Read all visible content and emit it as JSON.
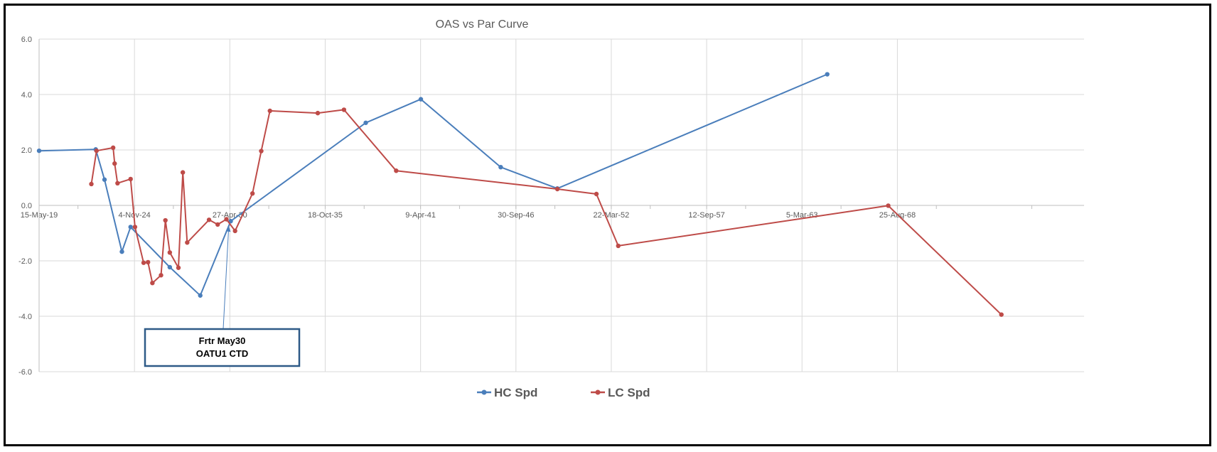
{
  "chart_data": {
    "type": "scatter",
    "title": "OAS vs Par Curve",
    "xlabel": "",
    "ylabel": "",
    "x_axis": {
      "type": "date",
      "min": "2019-05-15",
      "max": "2079-05-15",
      "tick_labels": [
        "15-May-19",
        "4-Nov-24",
        "27-Apr-30",
        "18-Oct-35",
        "9-Apr-41",
        "30-Sep-46",
        "22-Mar-52",
        "12-Sep-57",
        "5-Mar-63",
        "25-Aug-68"
      ],
      "tick_dates": [
        "2019-05-15",
        "2024-11-04",
        "2030-04-27",
        "2035-10-18",
        "2041-04-09",
        "2046-09-30",
        "2052-03-22",
        "2057-09-12",
        "2063-03-05",
        "2068-08-25"
      ],
      "minor_tick_dates": [
        "2021-08-07",
        "2027-01-29",
        "2032-07-22",
        "2038-01-12",
        "2043-07-05",
        "2048-12-25",
        "2054-06-17",
        "2059-12-08",
        "2065-05-31",
        "2070-11-20",
        "2076-05-13"
      ]
    },
    "y_axis": {
      "min": -6,
      "max": 6,
      "ticks": [
        6,
        4,
        2,
        0,
        -2,
        -4,
        -6
      ],
      "tick_labels": [
        "6.0",
        "4.0",
        "2.0",
        "0.0",
        "-2.0",
        "-4.0",
        "-6.0"
      ]
    },
    "grid": true,
    "legend_position": "bottom",
    "series": [
      {
        "name": "HC Spd",
        "color": "#4a7ebb",
        "points": [
          {
            "x": "2019-05-15",
            "y": 1.97
          },
          {
            "x": "2022-08-15",
            "y": 2.02
          },
          {
            "x": "2023-02-15",
            "y": 0.93
          },
          {
            "x": "2024-02-15",
            "y": -1.67
          },
          {
            "x": "2024-08-15",
            "y": -0.78
          },
          {
            "x": "2026-11-15",
            "y": -2.23
          },
          {
            "x": "2028-08-15",
            "y": -3.25
          },
          {
            "x": "2030-05-15",
            "y": -0.57
          },
          {
            "x": "2038-02-15",
            "y": 2.98
          },
          {
            "x": "2041-04-15",
            "y": 3.83
          },
          {
            "x": "2045-11-15",
            "y": 1.38
          },
          {
            "x": "2049-02-15",
            "y": 0.61
          },
          {
            "x": "2064-08-15",
            "y": 4.73
          }
        ]
      },
      {
        "name": "LC Spd",
        "color": "#be4b48",
        "points": [
          {
            "x": "2022-05-15",
            "y": 0.77
          },
          {
            "x": "2022-08-31",
            "y": 1.97
          },
          {
            "x": "2023-08-15",
            "y": 2.08
          },
          {
            "x": "2023-09-15",
            "y": 1.51
          },
          {
            "x": "2023-11-15",
            "y": 0.8
          },
          {
            "x": "2024-08-15",
            "y": 0.95
          },
          {
            "x": "2024-11-15",
            "y": -0.78
          },
          {
            "x": "2025-05-15",
            "y": -2.07
          },
          {
            "x": "2025-08-15",
            "y": -2.05
          },
          {
            "x": "2025-11-15",
            "y": -2.8
          },
          {
            "x": "2026-05-15",
            "y": -2.52
          },
          {
            "x": "2026-08-15",
            "y": -0.54
          },
          {
            "x": "2026-11-15",
            "y": -1.7
          },
          {
            "x": "2027-05-15",
            "y": -2.25
          },
          {
            "x": "2027-08-15",
            "y": 1.19
          },
          {
            "x": "2027-11-15",
            "y": -1.34
          },
          {
            "x": "2029-02-15",
            "y": -0.52
          },
          {
            "x": "2029-08-15",
            "y": -0.69
          },
          {
            "x": "2030-02-15",
            "y": -0.5
          },
          {
            "x": "2030-08-15",
            "y": -0.92
          },
          {
            "x": "2031-08-15",
            "y": 0.43
          },
          {
            "x": "2032-02-15",
            "y": 1.96
          },
          {
            "x": "2032-08-15",
            "y": 3.41
          },
          {
            "x": "2035-05-15",
            "y": 3.33
          },
          {
            "x": "2036-11-15",
            "y": 3.45
          },
          {
            "x": "2039-11-15",
            "y": 1.25
          },
          {
            "x": "2049-02-15",
            "y": 0.59
          },
          {
            "x": "2051-05-15",
            "y": 0.41
          },
          {
            "x": "2052-08-15",
            "y": -1.46
          },
          {
            "x": "2068-02-15",
            "y": -0.01
          },
          {
            "x": "2074-08-15",
            "y": -3.94
          }
        ]
      }
    ],
    "annotations": [
      {
        "text_lines": [
          "Frtr May30",
          "OATU1 CTD"
        ],
        "points_to": {
          "x": "2030-05-15",
          "y": -0.57
        }
      }
    ]
  }
}
